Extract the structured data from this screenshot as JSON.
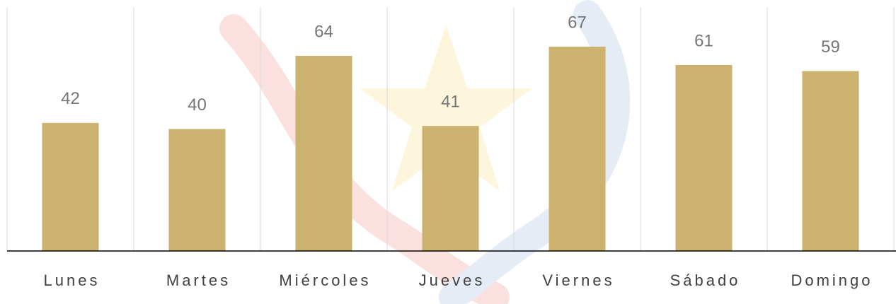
{
  "chart_data": {
    "type": "bar",
    "categories": [
      "Lunes",
      "Martes",
      "Miércoles",
      "Jueves",
      "Viernes",
      "Sábado",
      "Domingo"
    ],
    "values": [
      42,
      40,
      64,
      41,
      67,
      61,
      59
    ],
    "color": "#cbb26f",
    "ylim": [
      0,
      80
    ]
  }
}
